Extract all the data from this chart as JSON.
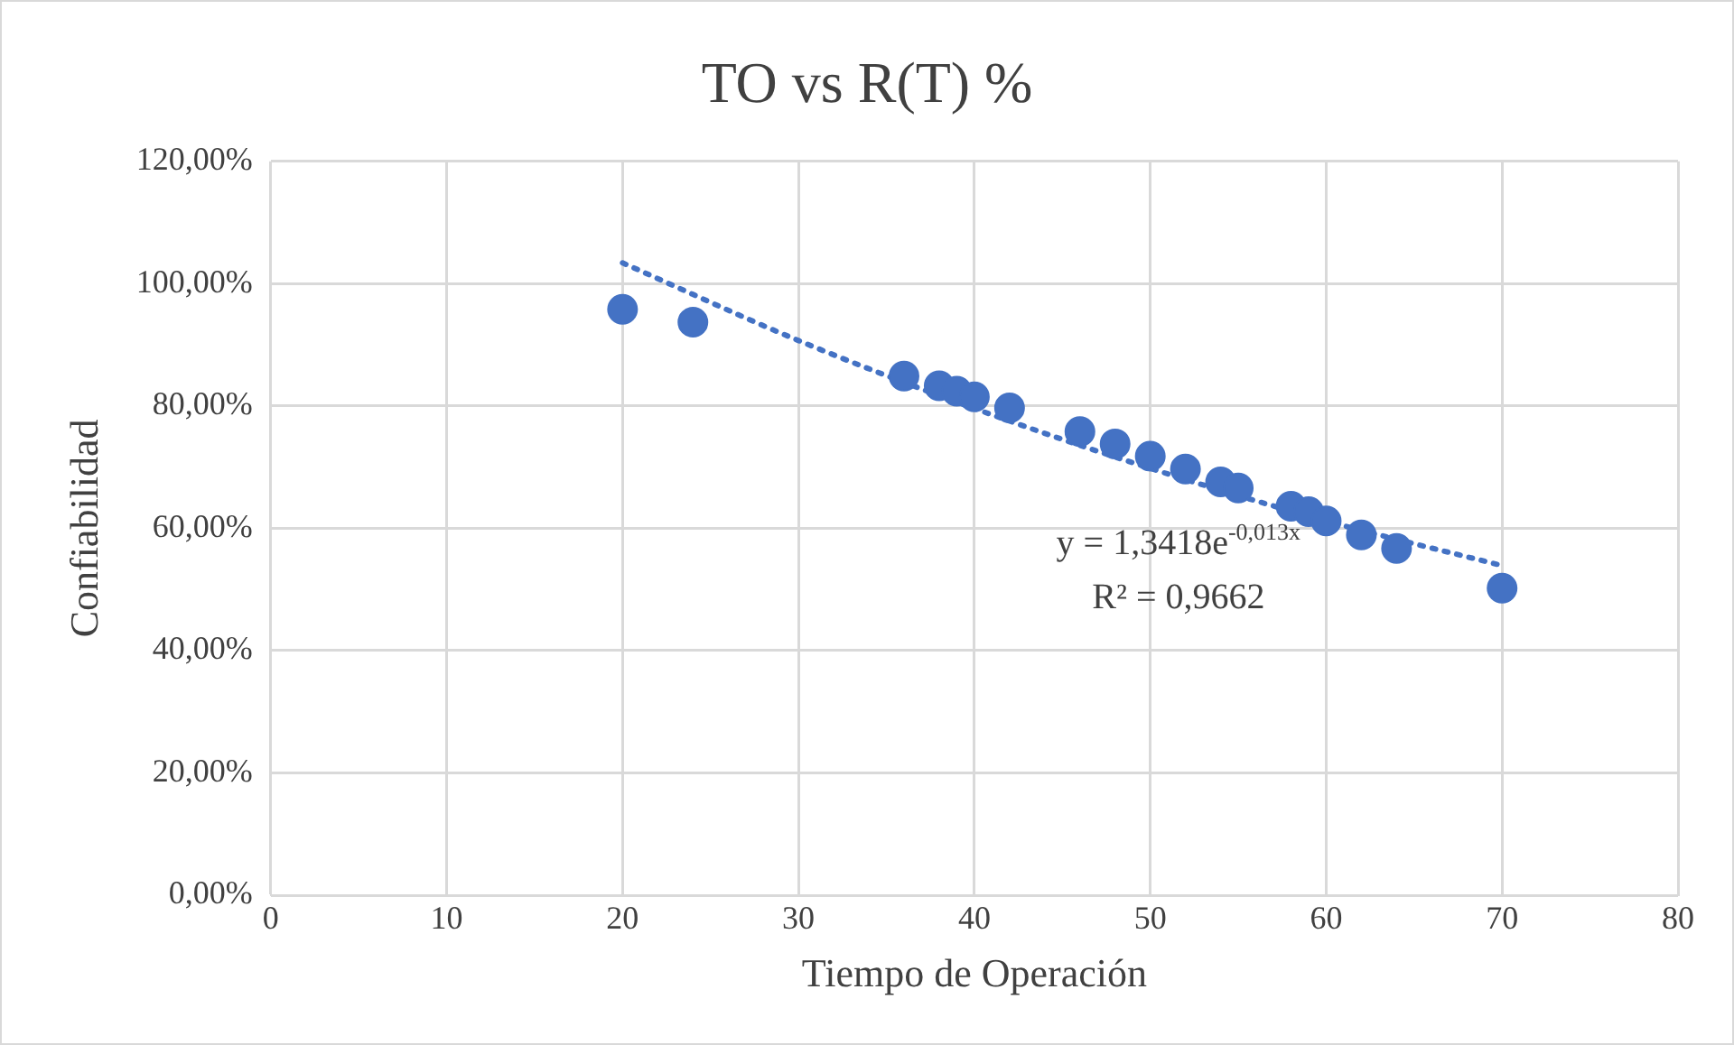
{
  "chart_data": {
    "type": "scatter",
    "title": "TO vs R(T) %",
    "xlabel": "Tiempo de Operación",
    "ylabel": "Confiabilidad",
    "series": [
      {
        "type": "scatter",
        "color": "#4472c4",
        "marker": "circle",
        "x": [
          20,
          24,
          36,
          38,
          39,
          40,
          42,
          46,
          48,
          50,
          52,
          54,
          55,
          58,
          59,
          60,
          62,
          64,
          70
        ],
        "values": [
          95.8,
          93.7,
          84.9,
          83.3,
          82.4,
          81.5,
          79.7,
          75.8,
          73.8,
          71.8,
          69.7,
          67.6,
          66.6,
          63.6,
          62.7,
          61.2,
          58.9,
          56.7,
          50.2
        ]
      },
      {
        "type": "line",
        "color": "#4472c4",
        "marker": "none",
        "line_style": "dotted",
        "x": [
          20,
          30,
          40,
          50,
          60,
          70
        ],
        "values": [
          103.4,
          90.7,
          79.6,
          69.8,
          61.2,
          53.9
        ]
      }
    ],
    "xlim": [
      0,
      80
    ],
    "xticks": [
      0,
      10,
      20,
      30,
      40,
      50,
      60,
      70,
      80
    ],
    "ylim": [
      0,
      120
    ],
    "yticks": [
      {
        "value": 0,
        "label": "0,00%"
      },
      {
        "value": 20,
        "label": "20,00%"
      },
      {
        "value": 40,
        "label": "40,00%"
      },
      {
        "value": 60,
        "label": "60,00%"
      },
      {
        "value": 80,
        "label": "80,00%"
      },
      {
        "value": 100,
        "label": "100,00%"
      },
      {
        "value": 120,
        "label": "120,00%"
      }
    ],
    "grid": true,
    "legend": false,
    "annotations": [
      "y = 1,3418e$^{-0,013x}$",
      "R² = 0,9662"
    ]
  }
}
